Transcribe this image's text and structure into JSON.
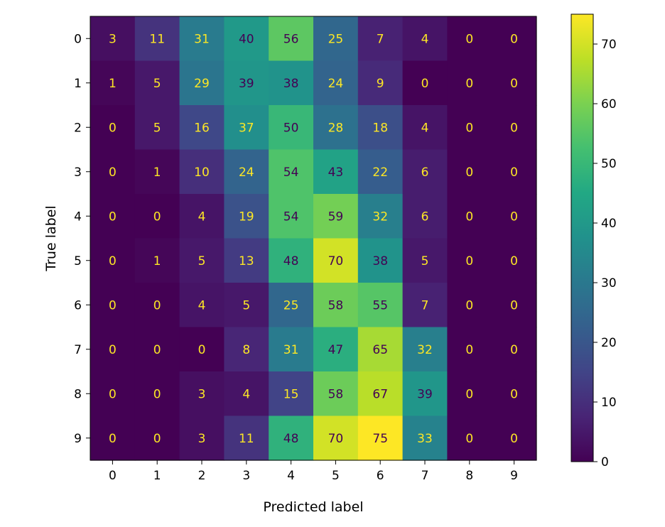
{
  "chart_data": {
    "type": "heatmap",
    "title": "",
    "xlabel": "Predicted label",
    "ylabel": "True label",
    "x_categories": [
      "0",
      "1",
      "2",
      "3",
      "4",
      "5",
      "6",
      "7",
      "8",
      "9"
    ],
    "y_categories": [
      "0",
      "1",
      "2",
      "3",
      "4",
      "5",
      "6",
      "7",
      "8",
      "9"
    ],
    "values": [
      [
        3,
        11,
        31,
        40,
        56,
        25,
        7,
        4,
        0,
        0
      ],
      [
        1,
        5,
        29,
        39,
        38,
        24,
        9,
        0,
        0,
        0
      ],
      [
        0,
        5,
        16,
        37,
        50,
        28,
        18,
        4,
        0,
        0
      ],
      [
        0,
        1,
        10,
        24,
        54,
        43,
        22,
        6,
        0,
        0
      ],
      [
        0,
        0,
        4,
        19,
        54,
        59,
        32,
        6,
        0,
        0
      ],
      [
        0,
        1,
        5,
        13,
        48,
        70,
        38,
        5,
        0,
        0
      ],
      [
        0,
        0,
        4,
        5,
        25,
        58,
        55,
        7,
        0,
        0
      ],
      [
        0,
        0,
        0,
        8,
        31,
        47,
        65,
        32,
        0,
        0
      ],
      [
        0,
        0,
        3,
        4,
        15,
        58,
        67,
        39,
        0,
        0
      ],
      [
        0,
        0,
        3,
        11,
        48,
        70,
        75,
        33,
        0,
        0
      ]
    ],
    "colormap": "viridis",
    "colorbar": {
      "range": [
        0,
        75
      ],
      "ticks": [
        0,
        10,
        20,
        30,
        40,
        50,
        60,
        70
      ]
    },
    "text_colors": {
      "on_dark": "#fde725",
      "on_light": "#440154"
    }
  }
}
